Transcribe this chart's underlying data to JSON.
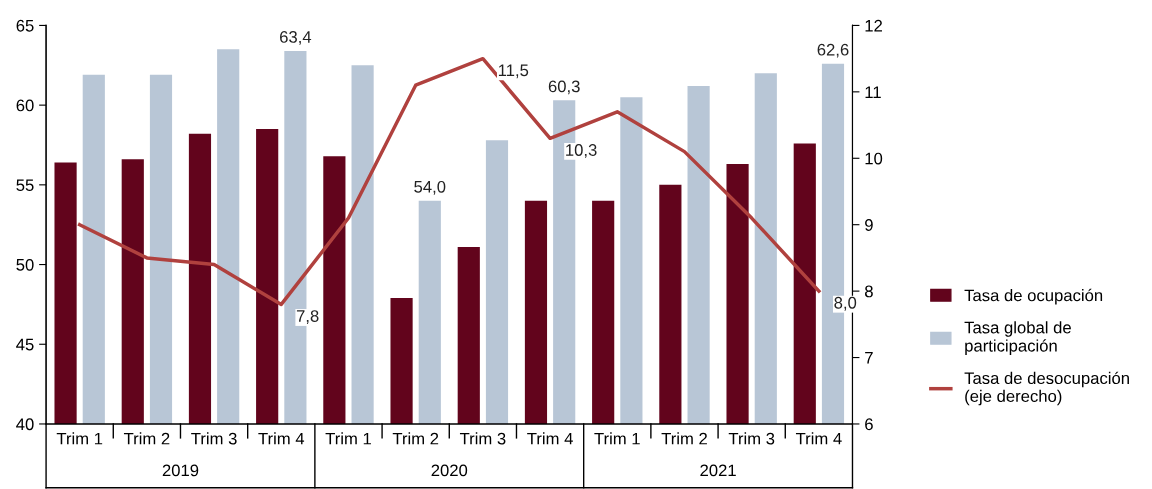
{
  "chart_data": {
    "type": "bar",
    "categories": [
      "Trim 1",
      "Trim 2",
      "Trim 3",
      "Trim 4",
      "Trim 1",
      "Trim 2",
      "Trim 3",
      "Trim 4",
      "Trim 1",
      "Trim 2",
      "Trim 3",
      "Trim 4"
    ],
    "series": [
      {
        "name": "Tasa de ocupación",
        "color": "#62041c",
        "values": [
          56.4,
          56.6,
          58.2,
          58.5,
          56.8,
          47.9,
          51.1,
          54.0,
          54.0,
          55.0,
          56.3,
          57.6
        ]
      },
      {
        "name": "Tasa global de participación",
        "color": "#b8c6d6",
        "values": [
          61.9,
          61.9,
          63.5,
          63.4,
          62.5,
          54.0,
          57.8,
          60.3,
          60.5,
          61.2,
          62.0,
          62.6
        ],
        "value_labels": [
          null,
          null,
          null,
          "63,4",
          null,
          "54,0",
          null,
          "60,3",
          null,
          null,
          null,
          "62,6"
        ]
      },
      {
        "name": "Tasa de desocupación (eje derecho)",
        "type": "line",
        "axis": "y2",
        "color": "#b0413e",
        "values": [
          9.0,
          8.5,
          8.4,
          7.8,
          9.1,
          11.1,
          11.5,
          10.3,
          10.7,
          10.1,
          9.1,
          8.0
        ],
        "value_labels": [
          null,
          null,
          null,
          "7,8",
          null,
          null,
          "11,5",
          "10,3",
          null,
          null,
          null,
          "8,0"
        ]
      }
    ],
    "annotations": [
      "2019",
      "2020",
      "2021"
    ],
    "ylim": [
      40,
      65
    ],
    "yticks": [
      40,
      45,
      50,
      55,
      60,
      65
    ],
    "y2lim": [
      6,
      12
    ],
    "y2ticks": [
      6,
      7,
      8,
      9,
      10,
      11,
      12
    ],
    "legend": "right",
    "grid": false,
    "marker": "none",
    "line_style": "solid"
  }
}
